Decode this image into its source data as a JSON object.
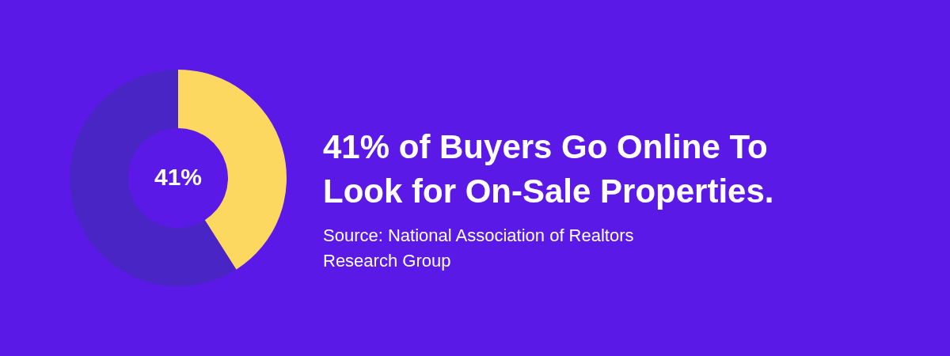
{
  "chart_data": {
    "type": "donut",
    "title": "41% of Buyers Go Online To Look for On-Sale Properties.",
    "categories": [
      null,
      null
    ],
    "values": [
      41,
      59
    ],
    "colors": [
      "#fdd861",
      "#4a25c6"
    ],
    "value_labels": [
      "41%",
      null
    ],
    "annotations": [
      "Source: National Association of Realtors Research Group"
    ]
  }
}
